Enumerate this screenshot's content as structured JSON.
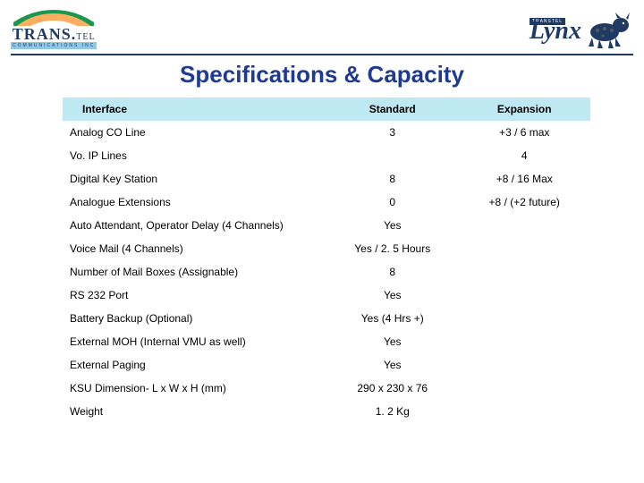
{
  "logos": {
    "left_main": "TRANS",
    "left_suffix": "TEL",
    "left_sub": "COMMUNICATIONS INC",
    "right_tag": "TRANSTEL",
    "right_text": "Lynx"
  },
  "title": "Specifications & Capacity",
  "table": {
    "columns": [
      "Interface",
      "Standard",
      "Expansion"
    ],
    "header_bg": "#bfe9f2",
    "rows": [
      [
        "Analog CO Line",
        "3",
        "+3 / 6 max"
      ],
      [
        "Vo. IP Lines",
        "",
        "4"
      ],
      [
        "Digital Key Station",
        "8",
        "+8 / 16 Max"
      ],
      [
        "Analogue Extensions",
        "0",
        "+8 / (+2 future)"
      ],
      [
        "Auto Attendant, Operator Delay (4 Channels)",
        "Yes",
        ""
      ],
      [
        "Voice Mail (4 Channels)",
        "Yes / 2. 5 Hours",
        ""
      ],
      [
        "Number of Mail Boxes (Assignable)",
        "8",
        ""
      ],
      [
        "RS 232 Port",
        "Yes",
        ""
      ],
      [
        "Battery Backup (Optional)",
        "Yes (4 Hrs +)",
        ""
      ],
      [
        "External MOH (Internal VMU as well)",
        "Yes",
        ""
      ],
      [
        "External Paging",
        "Yes",
        ""
      ],
      [
        "KSU Dimension- L x W x H (mm)",
        "290 x 230 x 76",
        ""
      ],
      [
        "Weight",
        "1. 2 Kg",
        ""
      ]
    ],
    "text_color": "#000000",
    "font_size": 12
  },
  "colors": {
    "title": "#1f3a93",
    "divider": "#1f3a63",
    "background": "#ffffff"
  }
}
